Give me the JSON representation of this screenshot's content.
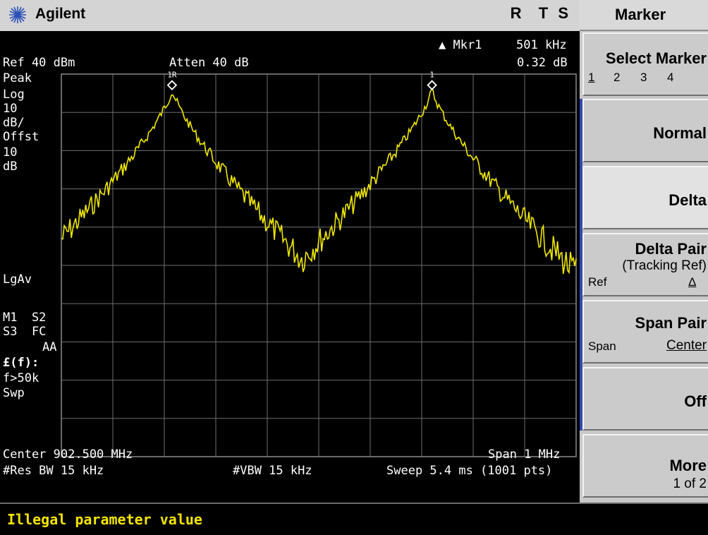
{
  "header": {
    "brand": "Agilent",
    "status": "R  T S"
  },
  "screen": {
    "marker_readout": {
      "label": "▲ Mkr1",
      "freq": "501 kHz",
      "delta": "0.32 dB"
    },
    "ref_level": "Ref 40 dBm",
    "atten": "Atten 40 dB",
    "detector": "Peak",
    "scale": [
      "Log",
      "10",
      "dB/",
      "Offst",
      "10",
      "dB"
    ],
    "avg_mode": "LgAv",
    "indicators": {
      "row1": "M1  S2",
      "row2": "S3  FC",
      "row3": "AA"
    },
    "func": "£(f):",
    "func_value": "f>50k",
    "sweep_label": "Swp",
    "center": "Center 902.500 MHz",
    "span": "Span 1 MHz",
    "res_bw": "#Res BW 15 kHz",
    "vbw": "#VBW 15 kHz",
    "sweep": "Sweep 5.4 ms (1001 pts)",
    "markers": [
      {
        "label": "1R",
        "x_frac": 0.215,
        "level_frac": 0.04
      },
      {
        "label": "1",
        "x_frac": 0.72,
        "level_frac": 0.04
      }
    ]
  },
  "trace": {
    "color": "#f0e800",
    "description": "spectrum trace with two peaks",
    "peaks": [
      {
        "center_frac": 0.215,
        "level_frac": 0.04
      },
      {
        "center_frac": 0.72,
        "level_frac": 0.04
      }
    ],
    "floor_frac": 0.83
  },
  "message": "Illegal parameter value",
  "menu": {
    "title": "Marker",
    "select_marker": {
      "label": "Select Marker",
      "options": [
        "1",
        "2",
        "3",
        "4"
      ]
    },
    "normal": "Normal",
    "delta": "Delta",
    "delta_pair": {
      "label": "Delta Pair",
      "sub": "(Tracking Ref)",
      "left": "Ref",
      "right": "Δ"
    },
    "span_pair": {
      "label": "Span Pair",
      "left": "Span",
      "right": "Center"
    },
    "off": "Off",
    "more": {
      "label": "More",
      "sub": "1 of 2"
    }
  },
  "colors": {
    "screen_bg": "#000000",
    "grid": "#8a8a8a",
    "trace": "#f0e800",
    "message": "#f2e400",
    "softkey_bracket": "#3348ae"
  }
}
